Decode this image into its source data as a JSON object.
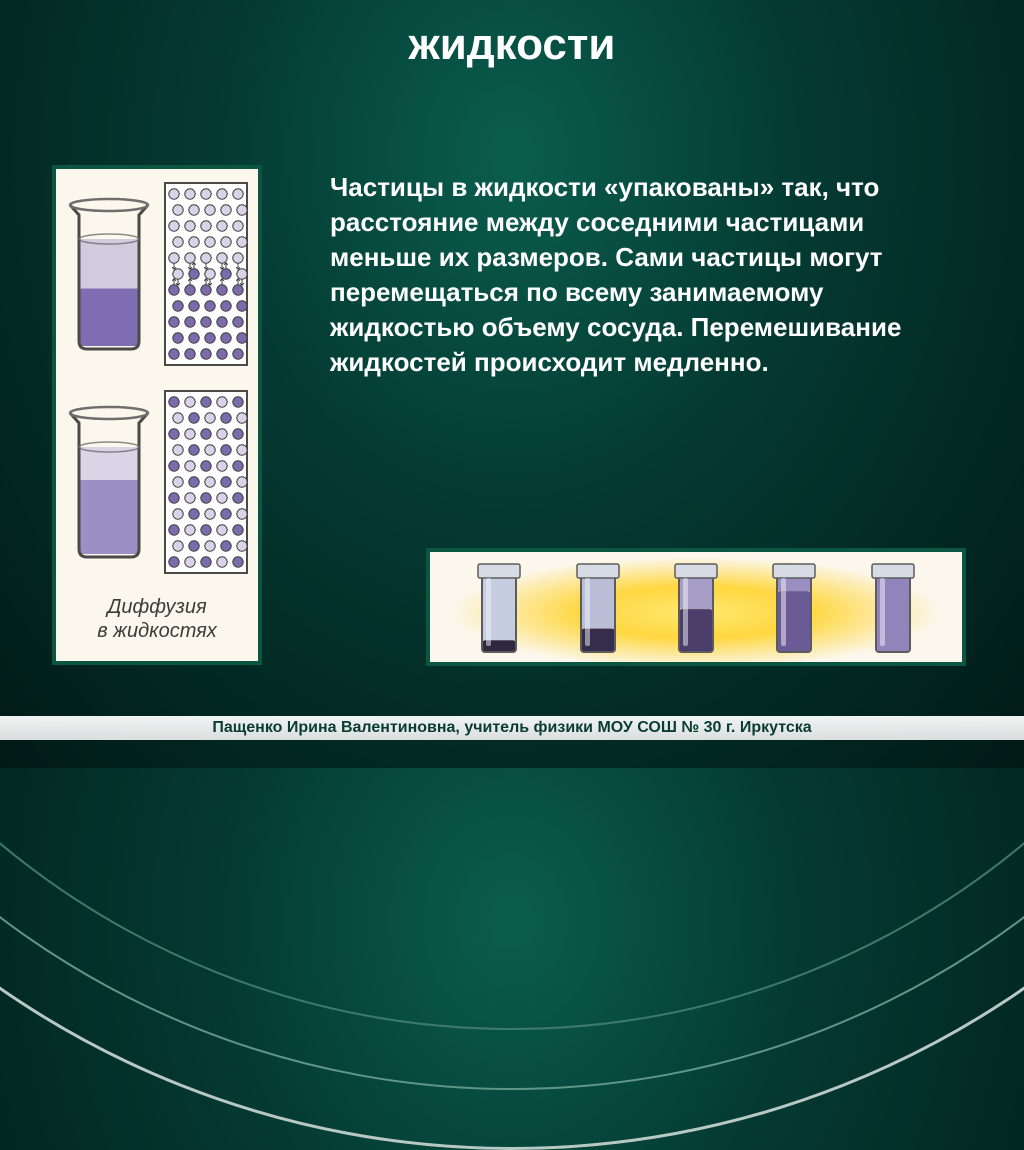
{
  "title": "жидкости",
  "body": "Частицы в жидкости «упакованы» так, что расстояние между соседними частицами меньше их размеров. Сами частицы могут перемещаться по всему занимаемому жидкостью объему сосуда. Перемешивание жидкостей происходит медленно.",
  "figure_caption_line1": "Диффузия",
  "figure_caption_line2": "в жидкостях",
  "footer": "Пащенко Ирина Валентиновна, учитель физики МОУ СОШ № 30 г. Иркутска",
  "colors": {
    "title_color": "#ffffff",
    "body_color": "#ffffff",
    "frame_green": "#0b5640",
    "panel_bg": "#fbf7ec",
    "arc_outer": "#b8c9c4",
    "arc_mid": "#5f9687",
    "arc_inner": "#3e7a6a"
  },
  "beakers": {
    "top": {
      "upper_fill": "#d1cbe0",
      "lower_fill": "#7e6db0",
      "divider_ratio": 0.45
    },
    "bottom": {
      "upper_fill": "#d9d4e6",
      "lower_fill": "#9b8fc6",
      "divider_ratio": 0.3
    },
    "outline": "#4a4a4a",
    "rim": "#6e6e6e"
  },
  "particles": {
    "light": "#d8d3e6",
    "dark": "#7b6bab",
    "outline": "#3d3d3d"
  },
  "tubes": [
    {
      "top": "#c7cde0",
      "bottom": "#2f2740",
      "bottom_height": 0.15
    },
    {
      "top": "#b9bdd6",
      "bottom": "#362c4b",
      "bottom_height": 0.3
    },
    {
      "top": "#a79ec8",
      "bottom": "#4b3e6a",
      "bottom_height": 0.55
    },
    {
      "top": "#9a8ec2",
      "bottom": "#6a5a96",
      "bottom_height": 0.78
    },
    {
      "top": "#9084bb",
      "bottom": "#9084bb",
      "bottom_height": 1.0
    }
  ],
  "tube_style": {
    "cap": "#d7dbe6",
    "outline": "#5c5c5c",
    "highlight": "#f2f4fa"
  }
}
